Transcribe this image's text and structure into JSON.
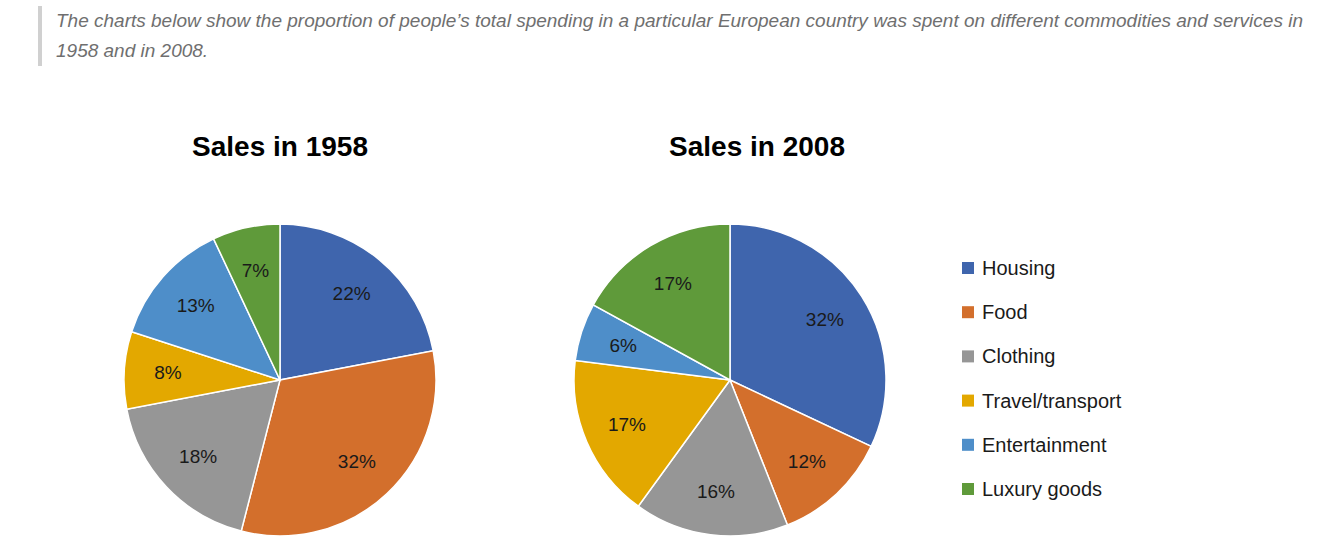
{
  "description": "The charts below show the proportion of people’s total spending in a particular European country was spent on different commodities and services in 1958 and in 2008.",
  "chart_data": [
    {
      "type": "pie",
      "title": "Sales in 1958",
      "categories": [
        "Housing",
        "Food",
        "Clothing",
        "Travel/transport",
        "Entertainment",
        "Luxury goods"
      ],
      "values": [
        22,
        32,
        18,
        8,
        13,
        7
      ],
      "value_labels": [
        "22%",
        "32%",
        "18%",
        "8%",
        "13%",
        "7%"
      ],
      "colors": [
        "#3f65ad",
        "#d36f2c",
        "#969696",
        "#e3a800",
        "#4e8ec9",
        "#5f9a3a"
      ],
      "data_labels": true
    },
    {
      "type": "pie",
      "title": "Sales in 2008",
      "categories": [
        "Housing",
        "Food",
        "Clothing",
        "Travel/transport",
        "Entertainment",
        "Luxury goods"
      ],
      "values": [
        32,
        12,
        16,
        17,
        6,
        17
      ],
      "value_labels": [
        "32%",
        "12%",
        "16%",
        "17%",
        "6%",
        "17%"
      ],
      "colors": [
        "#3f65ad",
        "#d36f2c",
        "#969696",
        "#e3a800",
        "#4e8ec9",
        "#5f9a3a"
      ],
      "data_labels": true,
      "legend": "right"
    }
  ]
}
